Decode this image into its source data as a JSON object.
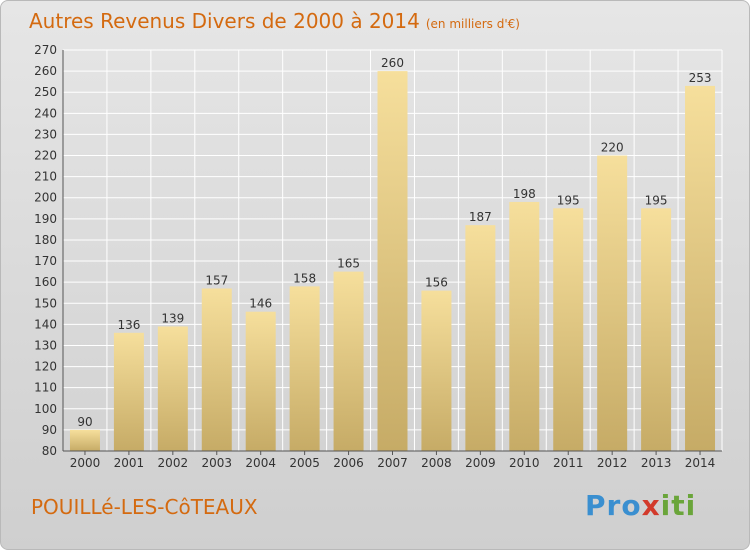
{
  "header": {
    "title": "Autres Revenus Divers de 2000 à 2014",
    "unit": "(en milliers d'€)"
  },
  "footer": {
    "commune": "POUILLé-LES-CôTEAUX",
    "logo_text": "Proxiti"
  },
  "colors": {
    "title": "#d46a10",
    "bar_light": "#f5dc98",
    "bar_dark": "#c7ad69",
    "grid": "#ffffff",
    "background": "#d9d9d9"
  },
  "chart_data": {
    "type": "bar",
    "title": "Autres Revenus Divers de 2000 à 2014",
    "subtitle": "(en milliers d'€)",
    "categories": [
      "2000",
      "2001",
      "2002",
      "2003",
      "2004",
      "2005",
      "2006",
      "2007",
      "2008",
      "2009",
      "2010",
      "2011",
      "2012",
      "2013",
      "2014"
    ],
    "values": [
      90,
      136,
      139,
      157,
      146,
      158,
      165,
      260,
      156,
      187,
      198,
      195,
      220,
      195,
      253
    ],
    "ylim": [
      80,
      270
    ],
    "yticks": [
      80,
      90,
      100,
      110,
      120,
      130,
      140,
      150,
      160,
      170,
      180,
      190,
      200,
      210,
      220,
      230,
      240,
      250,
      260,
      270
    ],
    "grid": true,
    "data_labels": true
  }
}
